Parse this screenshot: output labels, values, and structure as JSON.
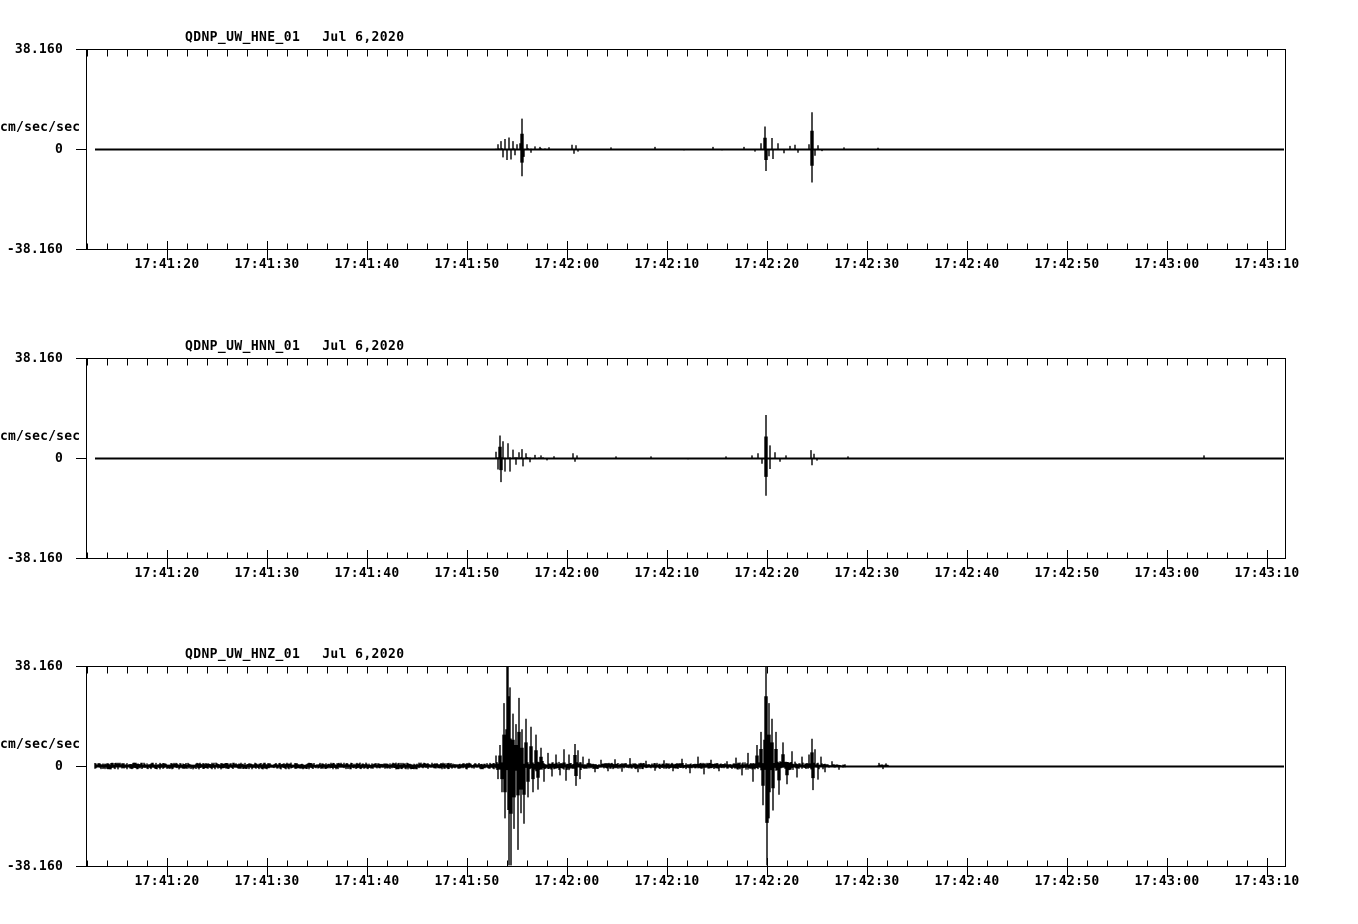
{
  "page": {
    "background_color": "#ffffff",
    "trace_color": "#000000",
    "description": "Three-channel strong-motion seismogram display, station QDNP (UW network), channels HNE/HNN/HNZ, Jul 6 2020, window ~17:41:12 to ~17:43:12 UTC"
  },
  "axis": {
    "y_top_label": "38.160",
    "y_zero_label": "0",
    "y_bottom_label": "-38.160",
    "y_unit_label": "cm/sec/sec",
    "ylim": [
      -38.16,
      38.16
    ],
    "x_tick_labels": [
      "17:41:20",
      "17:41:30",
      "17:41:40",
      "17:41:50",
      "17:42:00",
      "17:42:10",
      "17:42:20",
      "17:42:30",
      "17:42:40",
      "17:42:50",
      "17:43:00",
      "17:43:10"
    ],
    "x_major_interval_s": 10,
    "x_minor_interval_s": 2,
    "x_first_major_offset_s": 8.1,
    "x_span_s": 119.9,
    "grid": false,
    "legend": false
  },
  "chart_data": [
    {
      "type": "line",
      "kind": "seismogram-trace",
      "station_label": "QDNP_UW_HNE_01",
      "date_label": "Jul 6,2020",
      "amplitude_units": "cm/sec/sec",
      "t_basis": "seconds after left edge of window; major tick 17:41:20 is at t=8.1",
      "noise_segments": [
        [
          0.9,
          41,
          0.07
        ],
        [
          41,
          46,
          0.18
        ],
        [
          46,
          120,
          0.07
        ]
      ],
      "spikes": [
        [
          41.2,
          0.9
        ],
        [
          41.5,
          1.5
        ],
        [
          41.7,
          -1.6
        ],
        [
          41.9,
          1.9
        ],
        [
          42.1,
          -2.1
        ],
        [
          42.3,
          2.2
        ],
        [
          42.5,
          -2.0
        ],
        [
          42.7,
          1.5
        ],
        [
          42.9,
          -1.2
        ],
        [
          43.1,
          0.9
        ],
        [
          43.4,
          1.1
        ],
        [
          43.55,
          5.8
        ],
        [
          43.62,
          -5.2
        ],
        [
          43.8,
          -1.5
        ],
        [
          44.1,
          0.9
        ],
        [
          44.5,
          -0.7
        ],
        [
          44.9,
          0.5
        ],
        [
          45.4,
          0.4
        ],
        [
          46.3,
          0.35
        ],
        [
          48.6,
          0.8
        ],
        [
          48.8,
          -0.9
        ],
        [
          49.0,
          0.7
        ],
        [
          49.2,
          -0.5
        ],
        [
          52.5,
          0.3
        ],
        [
          56.9,
          0.4
        ],
        [
          59.8,
          -0.3
        ],
        [
          62.7,
          0.4
        ],
        [
          63.6,
          -0.3
        ],
        [
          65.8,
          0.4
        ],
        [
          66.9,
          -0.5
        ],
        [
          67.5,
          1.1
        ],
        [
          67.9,
          4.3
        ],
        [
          67.97,
          -4.2
        ],
        [
          68.3,
          -1.4
        ],
        [
          68.6,
          2.1
        ],
        [
          68.67,
          -1.9
        ],
        [
          69.2,
          1.1
        ],
        [
          69.8,
          -0.8
        ],
        [
          70.4,
          0.6
        ],
        [
          70.9,
          0.8
        ],
        [
          71.2,
          -0.7
        ],
        [
          72.3,
          0.9
        ],
        [
          72.55,
          7.0
        ],
        [
          72.63,
          -6.4
        ],
        [
          72.9,
          -1.3
        ],
        [
          73.2,
          0.7
        ],
        [
          73.6,
          -0.4
        ],
        [
          75.8,
          0.3
        ],
        [
          79.2,
          0.25
        ]
      ]
    },
    {
      "type": "line",
      "kind": "seismogram-trace",
      "station_label": "QDNP_UW_HNN_01",
      "date_label": "Jul 6,2020",
      "amplitude_units": "cm/sec/sec",
      "t_basis": "seconds after left edge of window; major tick 17:41:20 is at t=8.1",
      "noise_segments": [
        [
          0.9,
          41,
          0.07
        ],
        [
          41,
          46,
          0.18
        ],
        [
          46,
          120,
          0.07
        ]
      ],
      "spikes": [
        [
          41.0,
          1.2
        ],
        [
          41.2,
          -2.2
        ],
        [
          41.4,
          4.3
        ],
        [
          41.5,
          -4.6
        ],
        [
          41.7,
          3.2
        ],
        [
          41.9,
          -2.6
        ],
        [
          42.2,
          2.8
        ],
        [
          42.4,
          -2.6
        ],
        [
          42.7,
          1.6
        ],
        [
          43.0,
          -1.3
        ],
        [
          43.3,
          1.1
        ],
        [
          43.6,
          1.7
        ],
        [
          43.72,
          -1.6
        ],
        [
          44.0,
          0.9
        ],
        [
          44.4,
          -0.8
        ],
        [
          44.9,
          0.6
        ],
        [
          45.5,
          0.5
        ],
        [
          46.1,
          -0.45
        ],
        [
          46.8,
          0.35
        ],
        [
          48.7,
          0.9
        ],
        [
          48.9,
          -0.7
        ],
        [
          49.1,
          0.5
        ],
        [
          53.0,
          0.3
        ],
        [
          56.5,
          0.3
        ],
        [
          60.2,
          -0.3
        ],
        [
          64.0,
          0.3
        ],
        [
          66.6,
          0.5
        ],
        [
          67.2,
          0.9
        ],
        [
          67.6,
          -1.1
        ],
        [
          67.95,
          8.2
        ],
        [
          68.02,
          -7.2
        ],
        [
          68.35,
          2.4
        ],
        [
          68.42,
          -2.1
        ],
        [
          68.9,
          1.1
        ],
        [
          69.4,
          -0.7
        ],
        [
          70.0,
          0.5
        ],
        [
          72.45,
          1.5
        ],
        [
          72.6,
          -1.4
        ],
        [
          72.8,
          0.8
        ],
        [
          73.1,
          -0.5
        ],
        [
          76.2,
          0.3
        ],
        [
          111.8,
          0.5
        ]
      ]
    },
    {
      "type": "line",
      "kind": "seismogram-trace",
      "station_label": "QDNP_UW_HNZ_01",
      "date_label": "Jul 6,2020",
      "amplitude_units": "cm/sec/sec",
      "t_basis": "seconds after left edge of window; major tick 17:41:20 is at t=8.1",
      "noise_segments": [
        [
          0.9,
          41,
          0.65
        ],
        [
          41,
          46,
          1.0
        ],
        [
          46,
          50,
          0.8
        ],
        [
          50,
          65,
          0.6
        ],
        [
          65,
          67.5,
          0.7
        ],
        [
          67.5,
          71,
          0.9
        ],
        [
          71,
          74,
          0.65
        ],
        [
          74,
          76,
          0.35
        ],
        [
          76,
          79.2,
          0.08
        ],
        [
          79.2,
          80.3,
          0.3
        ],
        [
          80.3,
          120,
          0.05
        ]
      ],
      "spikes": [
        [
          41.0,
          2.0
        ],
        [
          41.2,
          -2.5
        ],
        [
          41.4,
          4.0
        ],
        [
          41.6,
          -5.0
        ],
        [
          41.8,
          12.0
        ],
        [
          41.9,
          -10.0
        ],
        [
          42.1,
          20.0
        ],
        [
          42.18,
          38.0
        ],
        [
          42.25,
          -24.0
        ],
        [
          42.4,
          15.0
        ],
        [
          42.5,
          -26.0
        ],
        [
          42.7,
          10.0
        ],
        [
          42.8,
          -12.0
        ],
        [
          43.0,
          8.0
        ],
        [
          43.15,
          -16.0
        ],
        [
          43.3,
          13.0
        ],
        [
          43.45,
          -9.0
        ],
        [
          43.6,
          7.0
        ],
        [
          43.8,
          -11.0
        ],
        [
          44.0,
          9.0
        ],
        [
          44.2,
          -6.0
        ],
        [
          44.5,
          7.5
        ],
        [
          44.7,
          -5.0
        ],
        [
          45.0,
          6.0
        ],
        [
          45.2,
          -4.5
        ],
        [
          45.5,
          3.5
        ],
        [
          45.8,
          -3.0
        ],
        [
          46.2,
          2.5
        ],
        [
          46.6,
          -2.0
        ],
        [
          47.0,
          2.2
        ],
        [
          47.4,
          -1.8
        ],
        [
          47.8,
          3.2
        ],
        [
          48.0,
          -2.8
        ],
        [
          48.3,
          2.2
        ],
        [
          48.9,
          4.2
        ],
        [
          49.0,
          -3.8
        ],
        [
          49.2,
          3.0
        ],
        [
          49.4,
          -2.5
        ],
        [
          49.7,
          1.8
        ],
        [
          50.3,
          1.4
        ],
        [
          50.9,
          -1.2
        ],
        [
          51.5,
          1.2
        ],
        [
          52.2,
          -1.0
        ],
        [
          52.9,
          1.3
        ],
        [
          53.6,
          -1.1
        ],
        [
          54.4,
          1.5
        ],
        [
          55.2,
          -1.2
        ],
        [
          56.0,
          1.0
        ],
        [
          56.9,
          -0.9
        ],
        [
          57.8,
          1.1
        ],
        [
          58.7,
          -1.0
        ],
        [
          59.6,
          1.4
        ],
        [
          60.4,
          -1.4
        ],
        [
          61.2,
          1.8
        ],
        [
          61.8,
          -1.6
        ],
        [
          62.5,
          1.2
        ],
        [
          63.3,
          -1.0
        ],
        [
          64.1,
          0.9
        ],
        [
          65.0,
          1.6
        ],
        [
          65.6,
          -1.8
        ],
        [
          66.2,
          2.5
        ],
        [
          66.7,
          -3.0
        ],
        [
          67.1,
          4.0
        ],
        [
          67.5,
          6.5
        ],
        [
          67.7,
          -7.5
        ],
        [
          67.85,
          10.0
        ],
        [
          68.0,
          38.0
        ],
        [
          68.06,
          -31.0
        ],
        [
          68.25,
          12.0
        ],
        [
          68.32,
          -10.0
        ],
        [
          68.6,
          9.0
        ],
        [
          68.7,
          -8.5
        ],
        [
          69.0,
          6.5
        ],
        [
          69.3,
          -5.5
        ],
        [
          69.7,
          4.5
        ],
        [
          70.1,
          -3.5
        ],
        [
          70.6,
          2.8
        ],
        [
          71.1,
          -2.2
        ],
        [
          71.6,
          1.8
        ],
        [
          72.3,
          2.2
        ],
        [
          72.55,
          5.2
        ],
        [
          72.65,
          -4.6
        ],
        [
          72.9,
          3.2
        ],
        [
          73.15,
          -2.6
        ],
        [
          73.5,
          1.8
        ],
        [
          73.9,
          -1.2
        ],
        [
          74.6,
          0.9
        ],
        [
          75.3,
          -0.7
        ],
        [
          79.3,
          0.6
        ],
        [
          79.7,
          -0.6
        ],
        [
          80.0,
          0.5
        ]
      ]
    }
  ]
}
